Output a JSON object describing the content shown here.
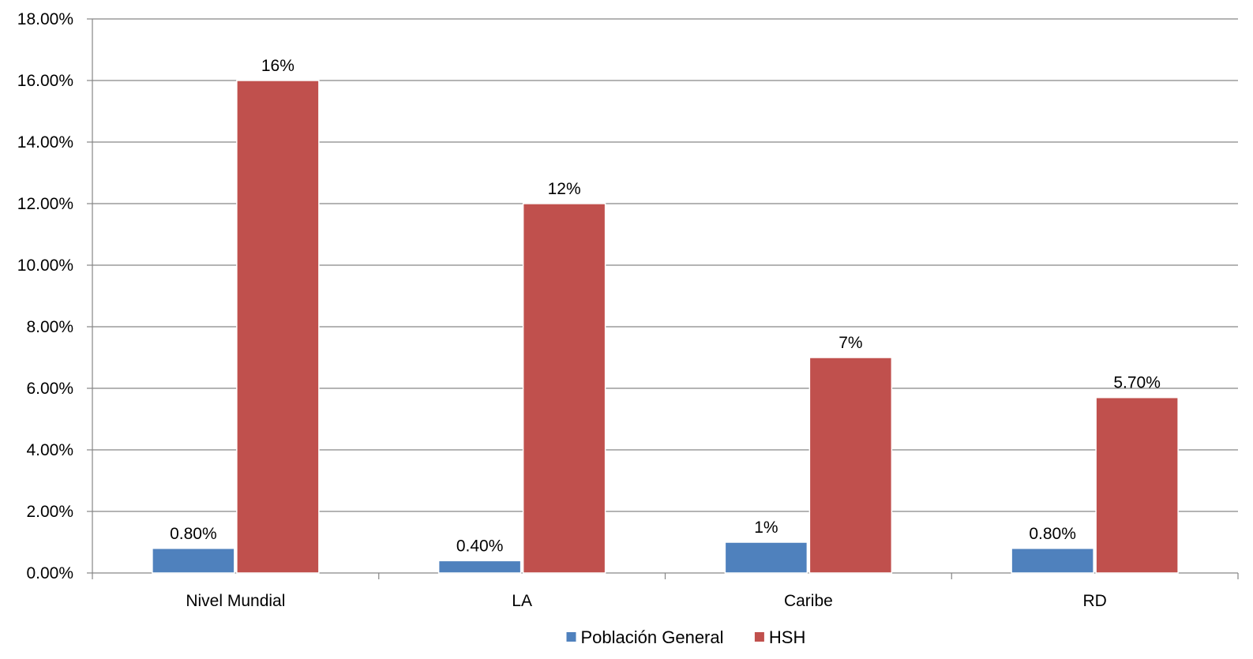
{
  "chart_data": {
    "type": "bar",
    "categories": [
      "Nivel Mundial",
      "LA",
      "Caribe",
      "RD"
    ],
    "series": [
      {
        "name": "Población General",
        "color": "#4f81bd",
        "values": [
          0.8,
          0.4,
          1.0,
          0.8
        ],
        "labels": [
          "0.80%",
          "0.40%",
          "1%",
          "0.80%"
        ]
      },
      {
        "name": "HSH",
        "color": "#c0504d",
        "values": [
          16,
          12,
          7,
          5.7
        ],
        "labels": [
          "16%",
          "12%",
          "7%",
          "5.70%"
        ]
      }
    ],
    "ylim": [
      0,
      18
    ],
    "yticks": [
      0,
      2,
      4,
      6,
      8,
      10,
      12,
      14,
      16,
      18
    ],
    "ytick_labels": [
      "0.00%",
      "2.00%",
      "4.00%",
      "6.00%",
      "8.00%",
      "10.00%",
      "12.00%",
      "14.00%",
      "16.00%",
      "18.00%"
    ],
    "grid": true,
    "legend_position": "bottom"
  }
}
